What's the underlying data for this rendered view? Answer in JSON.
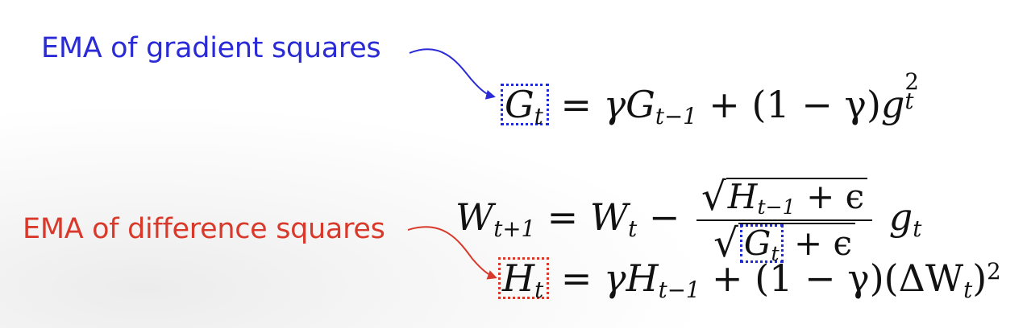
{
  "annotations": {
    "blue_label": "EMA of gradient squares",
    "red_label": "EMA of difference squares"
  },
  "colors": {
    "blue": "#2a2ad6",
    "red": "#d9392b",
    "equation": "#111111"
  },
  "equations": {
    "eq1": {
      "lhs_var": "G",
      "lhs_sub": "t",
      "equals": "=",
      "gamma": "γ",
      "term_var": "G",
      "term_sub": "t−1",
      "plus": "+",
      "paren_expr": "(1 − γ)",
      "g_var": "g",
      "g_sup": "2",
      "g_sub": "t"
    },
    "eq2": {
      "lhs_var": "W",
      "lhs_sub": "t+1",
      "equals": "=",
      "w_var": "W",
      "w_sub": "t",
      "minus": "−",
      "num_var": "H",
      "num_sub": "t−1",
      "num_rest": "+ ϵ",
      "den_var": "G",
      "den_sub": "t",
      "den_rest": "+ ϵ",
      "g_var": "g",
      "g_sub": "t"
    },
    "eq3": {
      "lhs_var": "H",
      "lhs_sub": "t",
      "equals": "=",
      "gamma": "γ",
      "term_var": "H",
      "term_sub": "t−1",
      "plus": "+",
      "paren_expr": "(1 − γ)",
      "delta_open": "(ΔW",
      "delta_sub": "t",
      "delta_close": ")",
      "delta_sup": "2"
    }
  }
}
